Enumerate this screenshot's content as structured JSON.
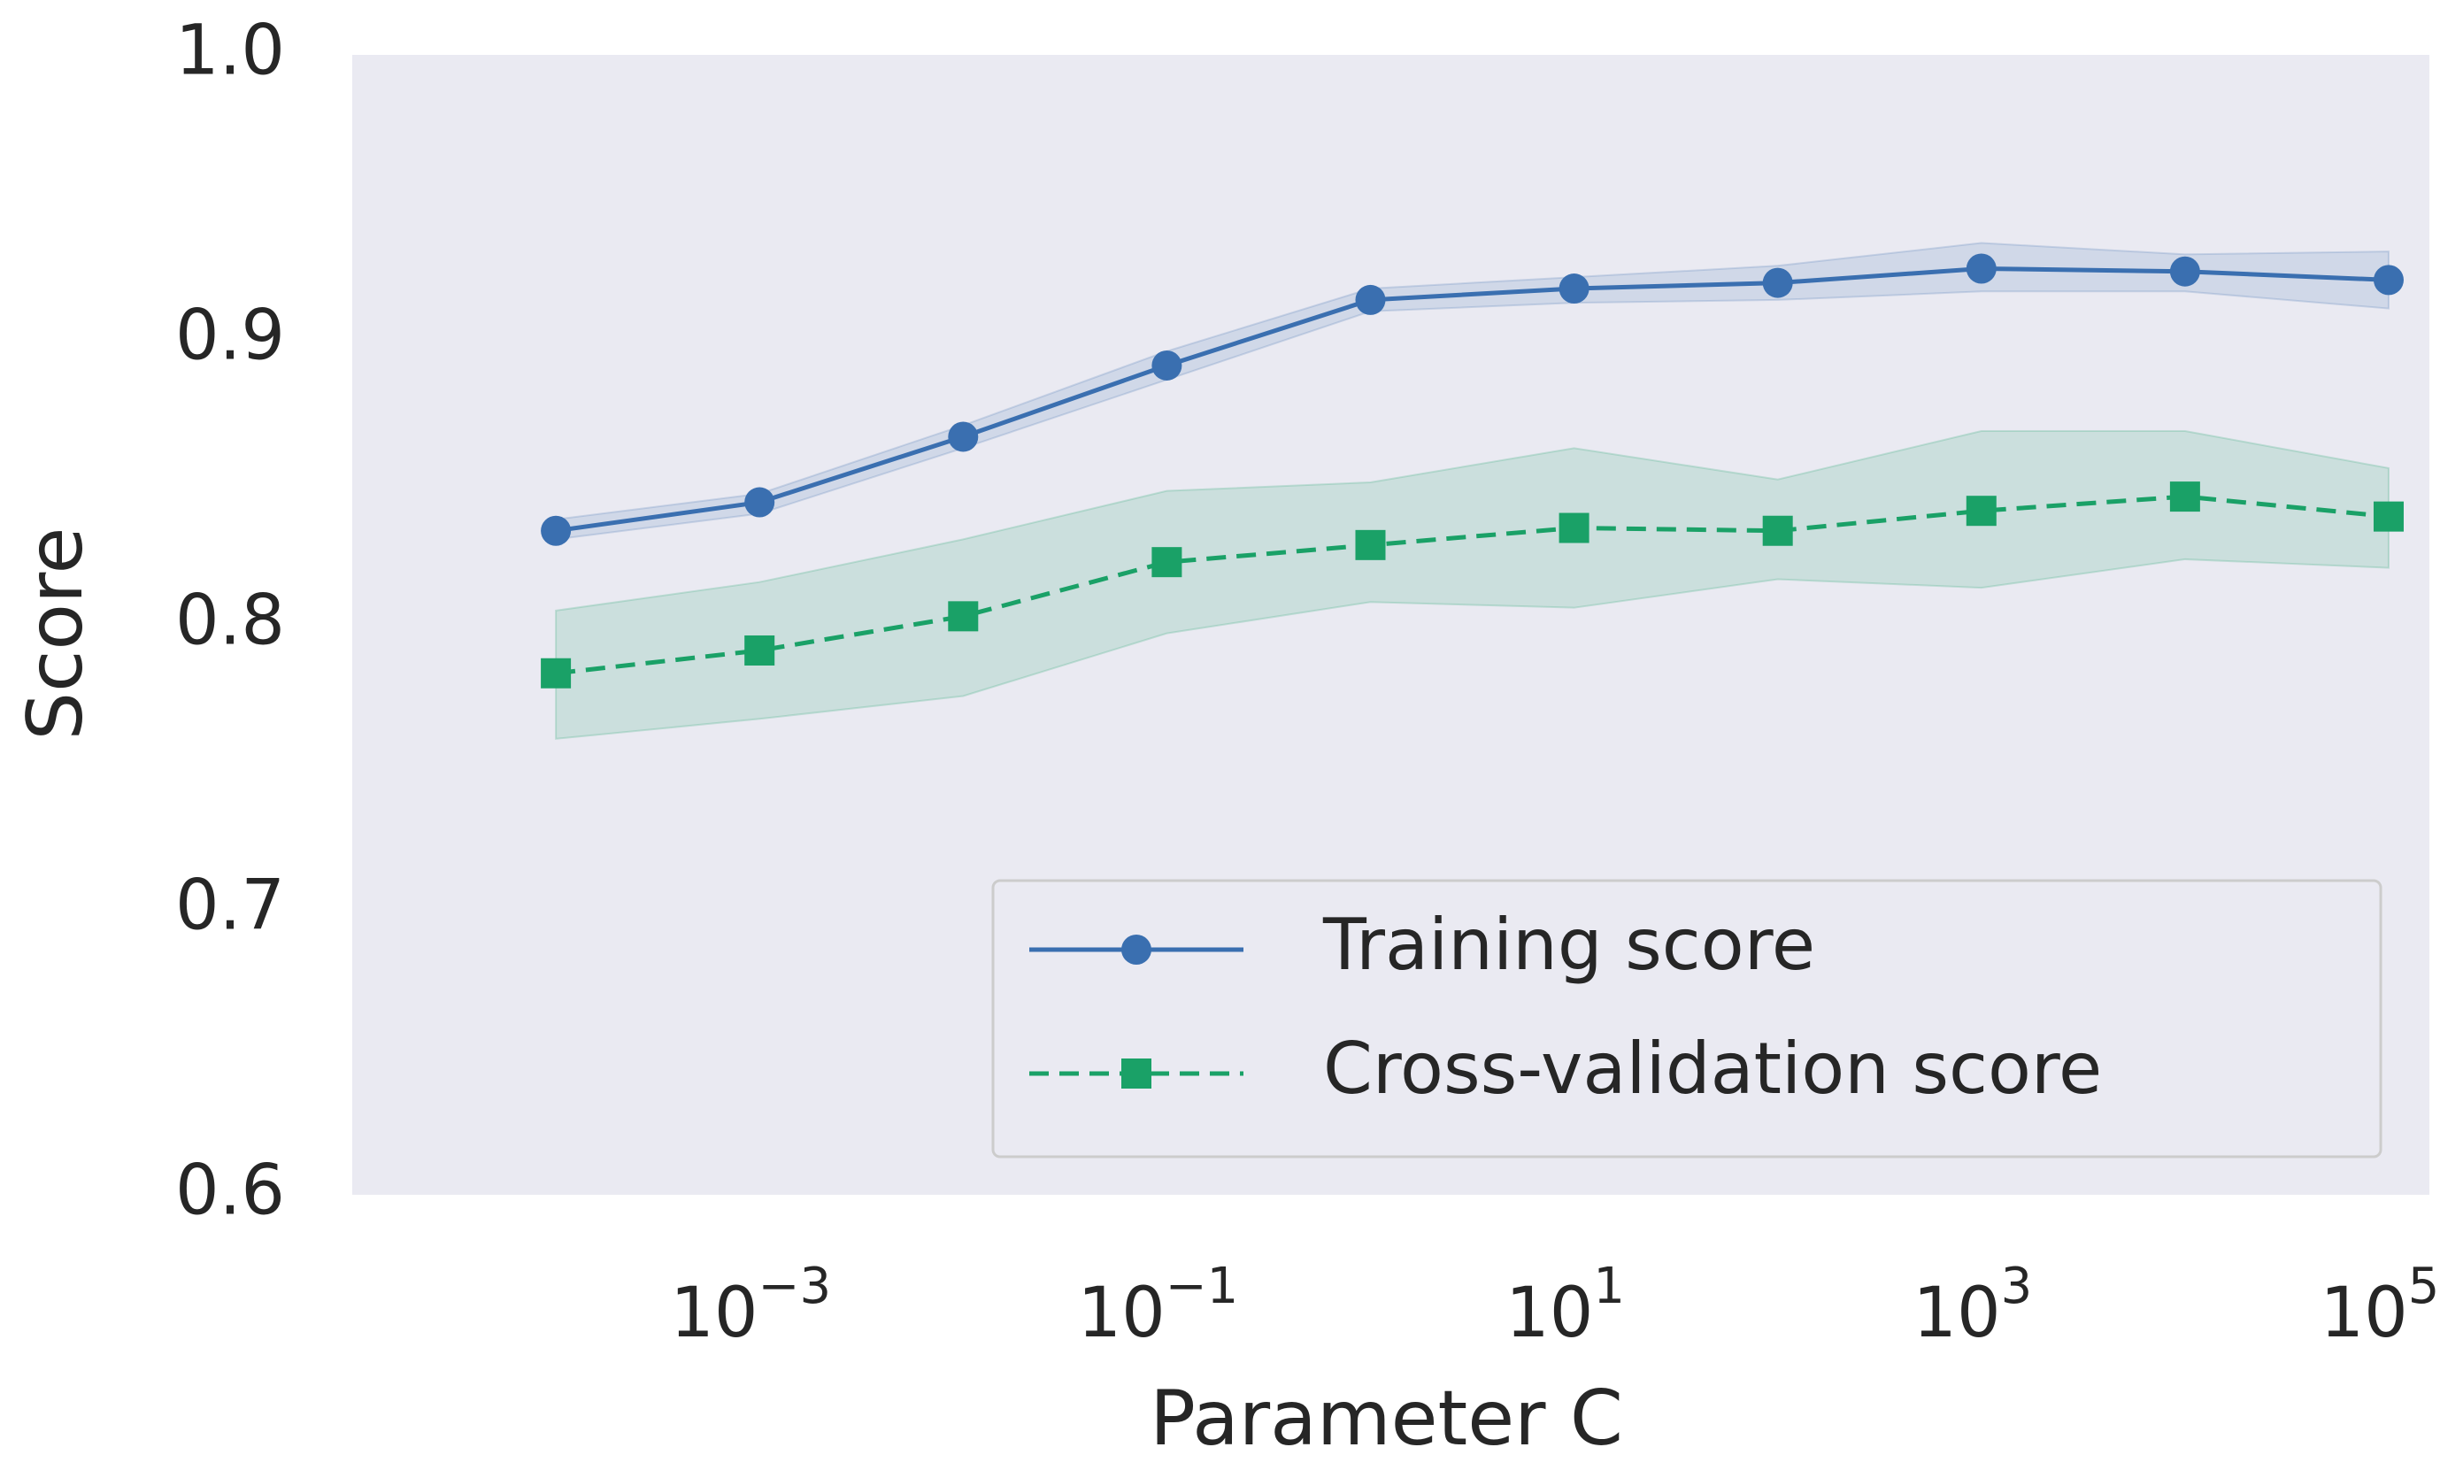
{
  "chart_data": {
    "type": "line",
    "title": "",
    "xlabel": "Parameter C",
    "ylabel": "Score",
    "xscale": "log",
    "xlim_log10": [
      -5.0,
      5.2
    ],
    "ylim": [
      0.6,
      1.0
    ],
    "grid": false,
    "legend_position": "lower-right",
    "x": [
      0.0001,
      0.001,
      0.01,
      0.1,
      1,
      10,
      100,
      1000,
      10000,
      100000
    ],
    "x_log10": [
      -4,
      -3,
      -2,
      -1,
      0,
      1,
      2,
      3,
      4,
      5
    ],
    "xticks": [
      {
        "log10": -3,
        "base": "10",
        "exp": "−3"
      },
      {
        "log10": -1,
        "base": "10",
        "exp": "−1"
      },
      {
        "log10": 1,
        "base": "10",
        "exp": "1"
      },
      {
        "log10": 3,
        "base": "10",
        "exp": "3"
      },
      {
        "log10": 5,
        "base": "10",
        "exp": "5"
      }
    ],
    "yticks": [
      {
        "value": 0.6,
        "label": "0.6"
      },
      {
        "value": 0.7,
        "label": "0.7"
      },
      {
        "value": 0.8,
        "label": "0.8"
      },
      {
        "value": 0.9,
        "label": "0.9"
      },
      {
        "value": 1.0,
        "label": "1.0"
      }
    ],
    "series": [
      {
        "name": "Training score",
        "color": "#3a6fb0",
        "marker": "circle",
        "linestyle": "solid",
        "values": [
          0.833,
          0.843,
          0.866,
          0.891,
          0.914,
          0.918,
          0.92,
          0.925,
          0.924,
          0.921
        ],
        "band_lower": [
          0.83,
          0.839,
          0.862,
          0.886,
          0.91,
          0.913,
          0.914,
          0.917,
          0.917,
          0.911
        ],
        "band_upper": [
          0.837,
          0.846,
          0.87,
          0.896,
          0.918,
          0.922,
          0.926,
          0.934,
          0.93,
          0.931
        ]
      },
      {
        "name": "Cross-validation score",
        "color": "#1aa167",
        "marker": "square",
        "linestyle": "dashed",
        "values": [
          0.783,
          0.791,
          0.803,
          0.822,
          0.828,
          0.834,
          0.833,
          0.84,
          0.845,
          0.838
        ],
        "band_lower": [
          0.76,
          0.767,
          0.775,
          0.797,
          0.808,
          0.806,
          0.816,
          0.813,
          0.823,
          0.82
        ],
        "band_upper": [
          0.805,
          0.815,
          0.83,
          0.847,
          0.85,
          0.862,
          0.851,
          0.868,
          0.868,
          0.855
        ]
      }
    ]
  },
  "style": {
    "plot_background": "#eaeaf2",
    "page_background": "#ffffff",
    "text_color": "#262626",
    "legend_background": "#eaeaf2",
    "legend_border": "#cccccc"
  }
}
